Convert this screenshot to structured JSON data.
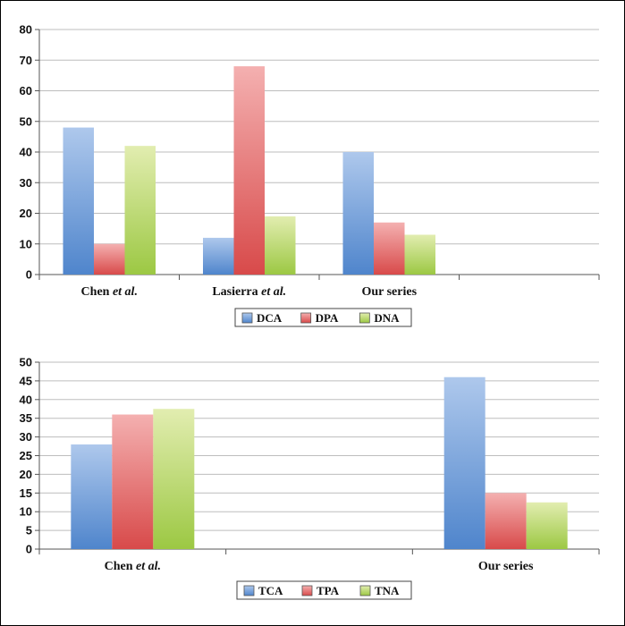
{
  "chart_data": [
    {
      "type": "bar",
      "categories": [
        "Chen et al.",
        "Lasierra et al.",
        "Our series",
        ""
      ],
      "series": [
        {
          "name": "DCA",
          "values": [
            48,
            12,
            40,
            null
          ]
        },
        {
          "name": "DPA",
          "values": [
            10,
            68,
            17,
            null
          ]
        },
        {
          "name": "DNA",
          "values": [
            42,
            19,
            13,
            null
          ]
        }
      ],
      "ylim": [
        0,
        80
      ],
      "yticks": [
        0,
        10,
        20,
        30,
        40,
        50,
        60,
        70,
        80
      ],
      "ytick_labels": [
        "0",
        "10",
        "20",
        "30",
        "40",
        "50",
        "60",
        "70",
        "80"
      ],
      "grid": true,
      "legend_position": "bottom"
    },
    {
      "type": "bar",
      "categories": [
        "Chen et al.",
        "",
        "Our series"
      ],
      "series": [
        {
          "name": "TCA",
          "values": [
            28,
            null,
            46
          ]
        },
        {
          "name": "TPA",
          "values": [
            36,
            null,
            15
          ]
        },
        {
          "name": "TNA",
          "values": [
            37.5,
            null,
            12.5
          ]
        }
      ],
      "ylim": [
        0,
        50
      ],
      "yticks": [
        0,
        5,
        10,
        15,
        20,
        25,
        30,
        35,
        40,
        45,
        50
      ],
      "ytick_labels": [
        "0",
        "5",
        "10",
        "15",
        "20",
        "25",
        "30",
        "35",
        "40",
        "45",
        "50"
      ],
      "grid": true,
      "legend_position": "bottom"
    }
  ],
  "colors": {
    "blue_top": "#aec8ec",
    "blue_bottom": "#4f85cc",
    "red_top": "#f4b0b0",
    "red_bottom": "#d84a4a",
    "green_top": "#e2edb0",
    "green_bottom": "#9cc843"
  }
}
